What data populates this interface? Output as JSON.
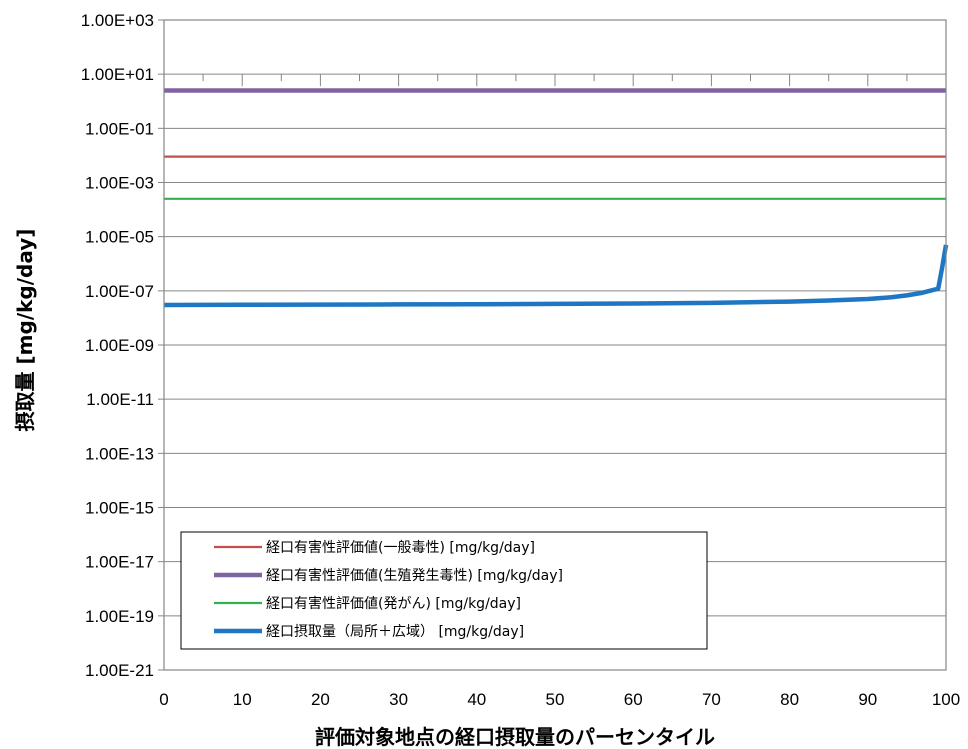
{
  "chart_data": {
    "type": "line",
    "xlabel": "評価対象地点の経口摂取量のパーセンタイル",
    "ylabel": "摂取量 [mg/kg/day]",
    "xlim": [
      0,
      100
    ],
    "ylim": [
      1e-21,
      1000
    ],
    "yscale": "log",
    "x_ticks": [
      "0",
      "10",
      "20",
      "30",
      "40",
      "50",
      "60",
      "70",
      "80",
      "90",
      "100"
    ],
    "y_ticks": [
      "1.00E+03",
      "1.00E+01",
      "1.00E-01",
      "1.00E-03",
      "1.00E-05",
      "1.00E-07",
      "1.00E-09",
      "1.00E-11",
      "1.00E-13",
      "1.00E-15",
      "1.00E-17",
      "1.00E-19",
      "1.00E-21"
    ],
    "grid": "horizontal",
    "legend_position": "bottom-left",
    "series": [
      {
        "name": "経口有害性評価値(一般毒性) [mg/kg/day]",
        "color": "#c0504d",
        "x": [
          0,
          100
        ],
        "y": [
          0.009,
          0.009
        ]
      },
      {
        "name": "経口有害性評価値(生殖発生毒性) [mg/kg/day]",
        "color": "#8064a2",
        "x": [
          0,
          100
        ],
        "y": [
          2.5,
          2.5
        ]
      },
      {
        "name": "経口有害性評価値(発がん) [mg/kg/day]",
        "color": "#33b050",
        "x": [
          0,
          100
        ],
        "y": [
          0.00025,
          0.00025
        ]
      },
      {
        "name": "経口摂取量（局所＋広域） [mg/kg/day]",
        "color": "#1f77c4",
        "x": [
          0,
          10,
          20,
          30,
          40,
          50,
          60,
          70,
          80,
          85,
          90,
          93,
          95,
          97,
          99,
          99.5,
          100
        ],
        "y": [
          3e-08,
          3.05e-08,
          3.1e-08,
          3.15e-08,
          3.2e-08,
          3.3e-08,
          3.4e-08,
          3.6e-08,
          4e-08,
          4.4e-08,
          5e-08,
          5.8e-08,
          6.8e-08,
          8.5e-08,
          1.2e-07,
          7e-07,
          5e-06
        ]
      }
    ]
  }
}
